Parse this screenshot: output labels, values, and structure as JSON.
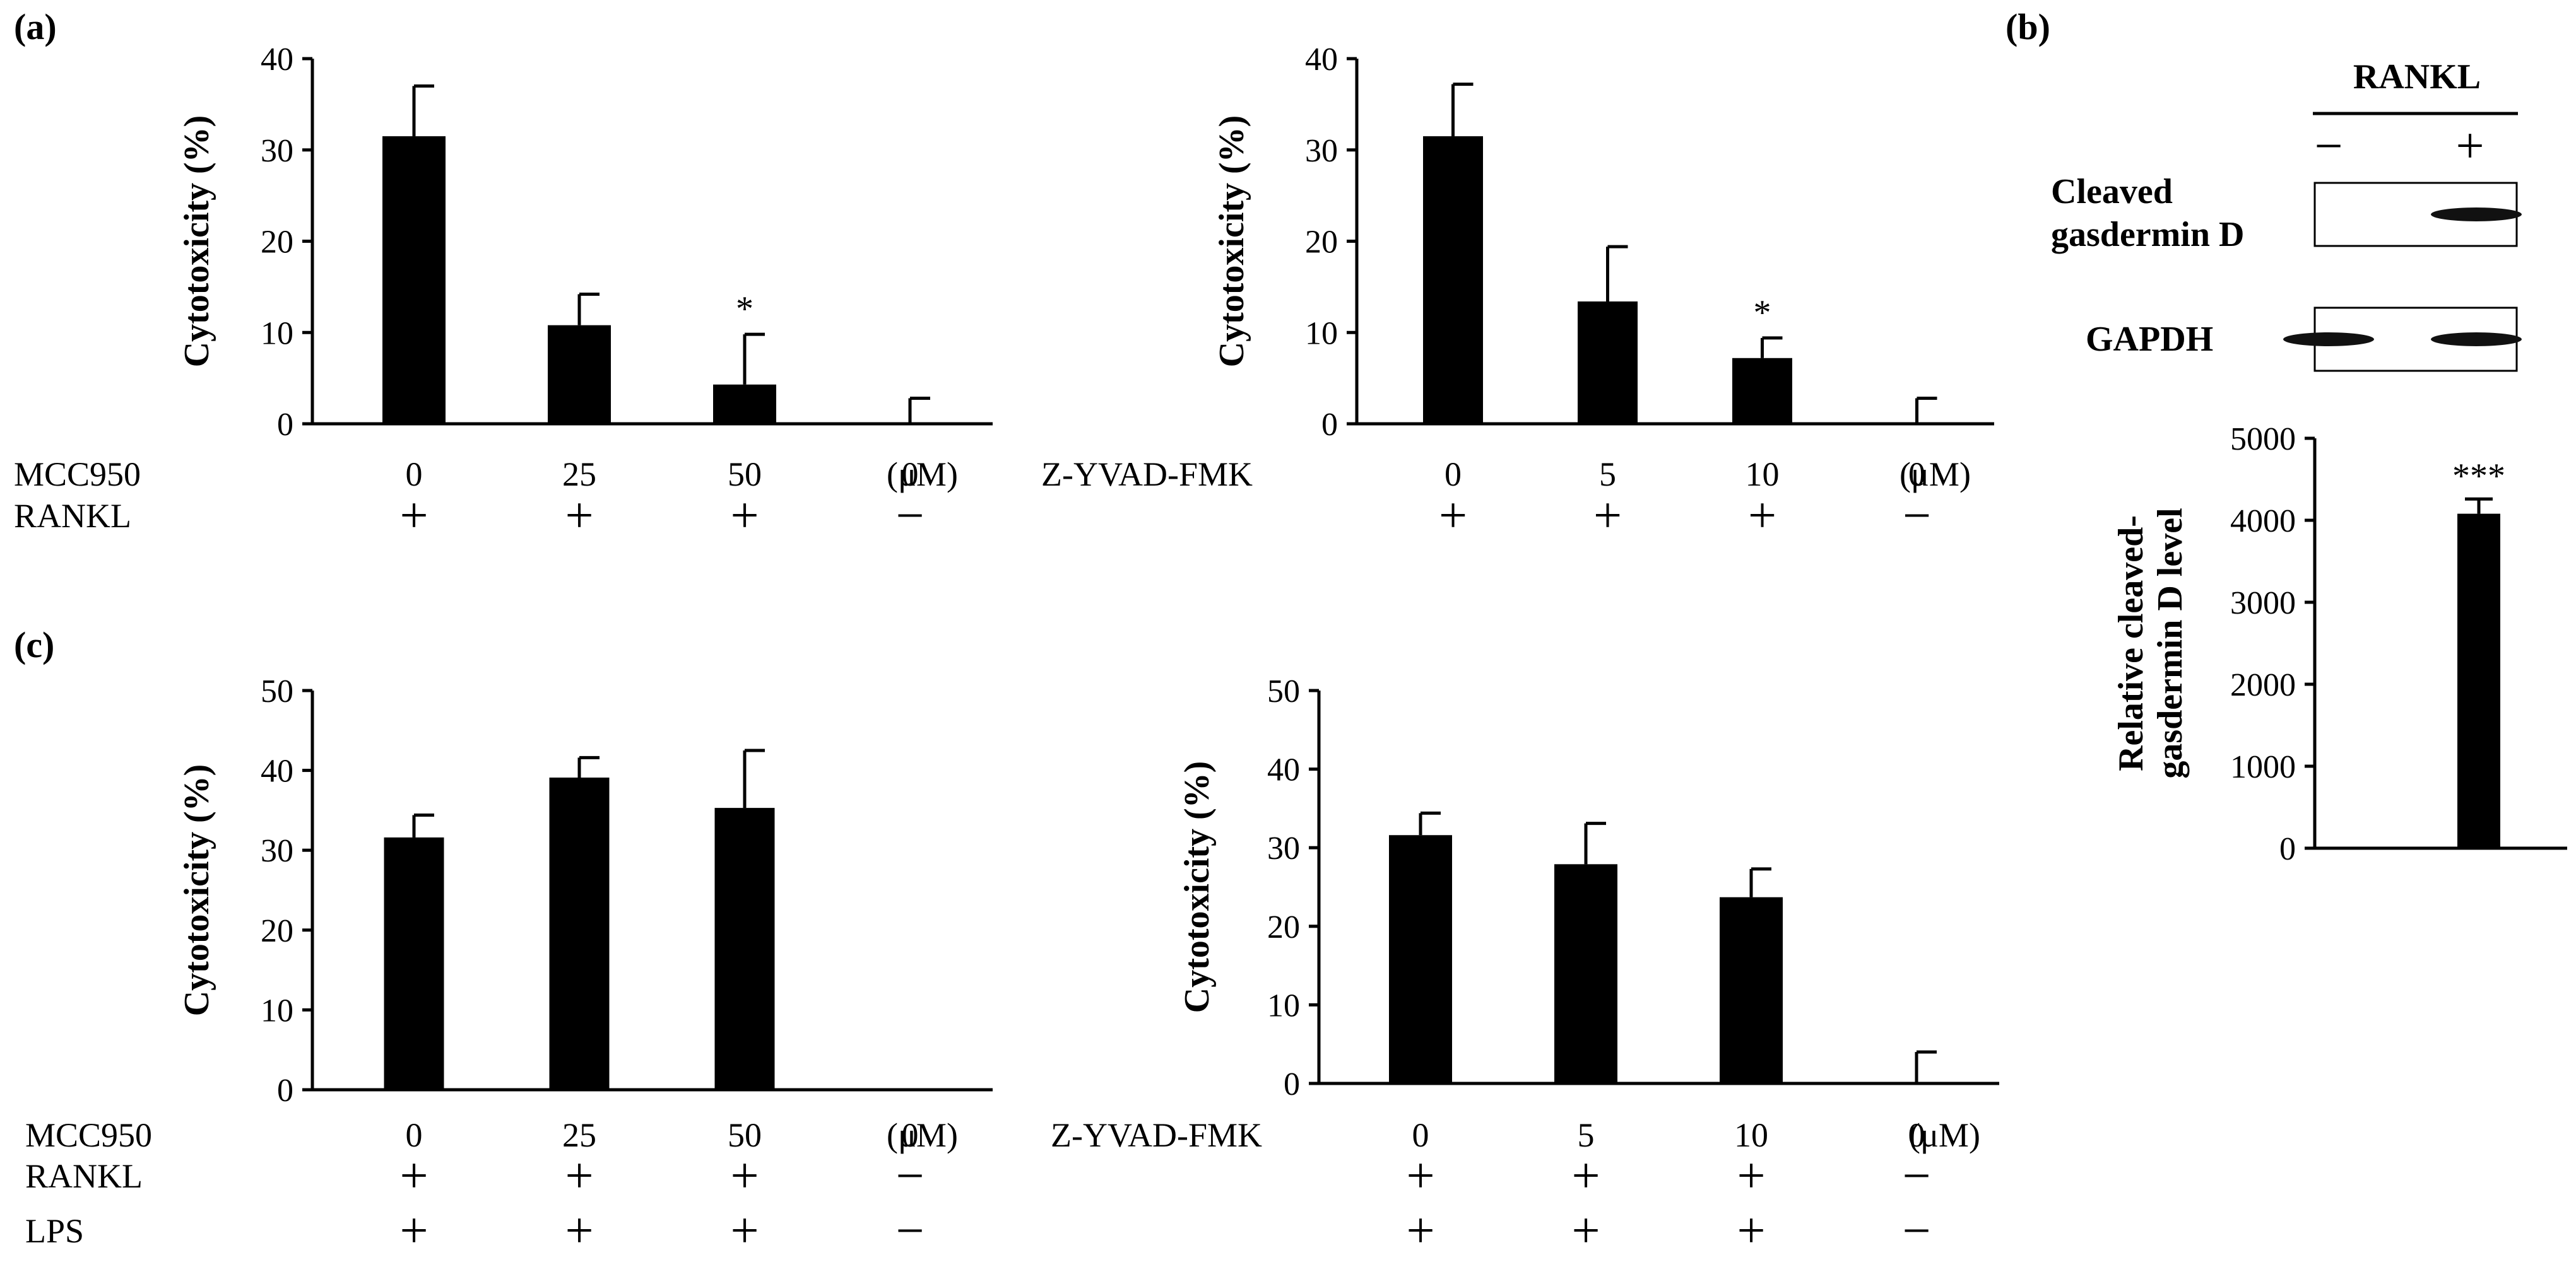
{
  "colors": {
    "bar": "#000000",
    "axis": "#000000",
    "blot_band": "#111111"
  },
  "panel_labels": {
    "a": "(a)",
    "b": "(b)",
    "c": "(c)"
  },
  "chart_data": [
    {
      "id": "a-left",
      "type": "bar",
      "categories": [
        "0",
        "25",
        "50",
        "0"
      ],
      "values": [
        31.5,
        10.8,
        4.3,
        0
      ],
      "errors": [
        5.5,
        3.4,
        5.5,
        2.8
      ],
      "significance": [
        "",
        "",
        "*",
        ""
      ],
      "ylabel": "Cytotoxicity (%)",
      "ylim": [
        0,
        40
      ],
      "yticks": [
        "0",
        "10",
        "20",
        "30",
        "40"
      ],
      "unit_label": "(μM)",
      "treatment_rows": [
        {
          "label": "MCC950",
          "values": [
            "0",
            "25",
            "50",
            "0"
          ]
        },
        {
          "label": "RANKL",
          "values": [
            "+",
            "+",
            "+",
            "−"
          ]
        }
      ]
    },
    {
      "id": "a-right",
      "type": "bar",
      "categories": [
        "0",
        "5",
        "10",
        "0"
      ],
      "values": [
        31.5,
        13.4,
        7.2,
        0
      ],
      "errors": [
        5.7,
        6.0,
        2.2,
        2.8
      ],
      "significance": [
        "",
        "",
        "*",
        ""
      ],
      "ylabel": "Cytotoxicity (%)",
      "ylim": [
        0,
        40
      ],
      "yticks": [
        "0",
        "10",
        "20",
        "30",
        "40"
      ],
      "unit_label": "(μM)",
      "treatment_rows": [
        {
          "label": "Z-YVAD-FMK",
          "values": [
            "0",
            "5",
            "10",
            "0"
          ]
        },
        {
          "label": "",
          "values": [
            "+",
            "+",
            "+",
            "−"
          ]
        }
      ]
    },
    {
      "id": "b-bottom",
      "type": "bar",
      "categories": [
        "−",
        "+"
      ],
      "values": [
        0,
        4080
      ],
      "errors": [
        0,
        180
      ],
      "significance": [
        "",
        "***"
      ],
      "ylabel_lines": [
        "Relative cleaved-",
        "gasdermin D level"
      ],
      "ylim": [
        0,
        5000
      ],
      "yticks": [
        "0",
        "1000",
        "2000",
        "3000",
        "4000",
        "5000"
      ],
      "blot": {
        "header": "RANKL",
        "lanes": [
          "−",
          "+"
        ],
        "rows": [
          {
            "label_lines": [
              "Cleaved",
              "gasdermin D"
            ],
            "bands": [
              0,
              1
            ]
          },
          {
            "label_lines": [
              "GAPDH"
            ],
            "bands": [
              1,
              1
            ]
          }
        ]
      }
    },
    {
      "id": "c-left",
      "type": "bar",
      "categories": [
        "0",
        "25",
        "50",
        "0"
      ],
      "values": [
        31.6,
        39.1,
        35.3,
        0
      ],
      "errors": [
        2.8,
        2.5,
        7.2,
        0
      ],
      "significance": [
        "",
        "",
        "",
        ""
      ],
      "ylabel": "Cytotoxicity (%)",
      "ylim": [
        0,
        50
      ],
      "yticks": [
        "0",
        "10",
        "20",
        "30",
        "40",
        "50"
      ],
      "unit_label": "(μM)",
      "treatment_rows": [
        {
          "label": "MCC950",
          "values": [
            "0",
            "25",
            "50",
            "0"
          ]
        },
        {
          "label": "RANKL",
          "values": [
            "+",
            "+",
            "+",
            "−"
          ]
        },
        {
          "label": "LPS",
          "values": [
            "+",
            "+",
            "+",
            "−"
          ]
        }
      ]
    },
    {
      "id": "c-right",
      "type": "bar",
      "categories": [
        "0",
        "5",
        "10",
        "0"
      ],
      "values": [
        31.6,
        27.9,
        23.7,
        0
      ],
      "errors": [
        2.8,
        5.2,
        3.6,
        4.0
      ],
      "significance": [
        "",
        "",
        "",
        ""
      ],
      "ylabel": "Cytotoxicity (%)",
      "ylim": [
        0,
        50
      ],
      "yticks": [
        "0",
        "10",
        "20",
        "30",
        "40",
        "50"
      ],
      "unit_label": "(μM)",
      "treatment_rows": [
        {
          "label": "Z-YVAD-FMK",
          "values": [
            "0",
            "5",
            "10",
            "0"
          ]
        },
        {
          "label": "",
          "values": [
            "+",
            "+",
            "+",
            "−"
          ]
        },
        {
          "label": "",
          "values": [
            "+",
            "+",
            "+",
            "−"
          ]
        }
      ]
    }
  ]
}
